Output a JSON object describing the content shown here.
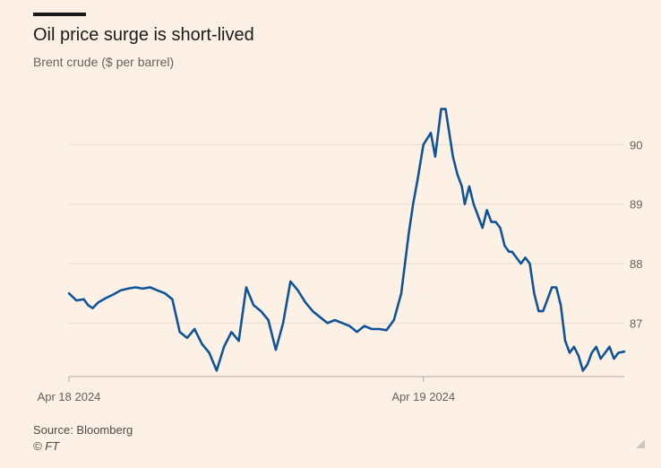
{
  "header": {
    "title": "Oil price surge is short-lived",
    "subtitle": "Brent crude ($ per barrel)"
  },
  "footer": {
    "source": "Source: Bloomberg",
    "credit": "© FT"
  },
  "colors": {
    "background": "#fdf1e6",
    "line": "#0f5499",
    "grid": "#e9dccf",
    "axis": "#b3a89e",
    "text": "#66605c"
  },
  "chart_data": {
    "type": "line",
    "title": "Oil price surge is short-lived",
    "subtitle": "Brent crude ($ per barrel)",
    "xlabel": "",
    "ylabel": "",
    "x_ticks": [
      "Apr 18 2024",
      "Apr 19 2024"
    ],
    "x_tick_hours": [
      0,
      24
    ],
    "y_ticks": [
      87,
      88,
      89,
      90
    ],
    "ylim": [
      86.1,
      90.7
    ],
    "xlim": [
      0,
      37.6
    ],
    "grid": true,
    "y_axis_side": "right",
    "series": [
      {
        "hours": [
          0,
          0.5,
          1,
          1.3,
          1.6,
          2,
          2.5,
          3,
          3.5,
          4,
          4.5,
          5,
          5.5,
          6,
          6.5,
          7,
          7.5,
          8,
          8.5,
          9,
          9.5,
          10,
          10.5,
          11,
          11.5,
          12,
          12.5,
          13,
          13.5,
          14,
          14.5,
          15,
          15.5,
          16,
          16.5,
          17,
          17.5,
          18,
          18.5,
          19,
          19.5,
          20,
          20.5,
          21,
          21.5,
          22,
          22.5,
          23,
          23.3,
          23.6,
          24,
          24.5,
          24.8,
          25,
          25.2,
          25.5,
          26,
          26.3,
          26.6,
          26.8,
          27.1,
          27.4,
          27.7,
          28,
          28.3,
          28.6,
          28.9,
          29.2,
          29.5,
          29.8,
          30,
          30.3,
          30.6,
          30.9,
          31.2,
          31.5,
          31.8,
          32.1,
          32.4,
          32.7,
          33,
          33.3,
          33.6,
          33.9,
          34.2,
          34.5,
          34.8,
          35.1,
          35.4,
          35.7,
          36,
          36.3,
          36.6,
          36.9,
          37.2,
          37.6
        ],
        "values": [
          87.5,
          87.38,
          87.4,
          87.3,
          87.25,
          87.35,
          87.42,
          87.48,
          87.55,
          87.58,
          87.6,
          87.58,
          87.6,
          87.55,
          87.5,
          87.4,
          86.85,
          86.75,
          86.9,
          86.65,
          86.5,
          86.2,
          86.6,
          86.85,
          86.7,
          87.6,
          87.3,
          87.2,
          87.05,
          86.55,
          87.0,
          87.7,
          87.55,
          87.35,
          87.2,
          87.1,
          87.0,
          87.05,
          87.0,
          86.95,
          86.85,
          86.95,
          86.9,
          86.9,
          86.88,
          87.05,
          87.5,
          88.5,
          89.0,
          89.4,
          90.0,
          90.2,
          89.8,
          90.2,
          90.6,
          90.6,
          89.8,
          89.5,
          89.3,
          89.0,
          89.3,
          89.0,
          88.8,
          88.6,
          88.9,
          88.7,
          88.7,
          88.6,
          88.3,
          88.2,
          88.2,
          88.1,
          88.0,
          88.1,
          88.0,
          87.5,
          87.2,
          87.2,
          87.4,
          87.6,
          87.6,
          87.3,
          86.7,
          86.5,
          86.6,
          86.45,
          86.2,
          86.3,
          86.5,
          86.6,
          86.4,
          86.5,
          86.6,
          86.4,
          86.5,
          86.52
        ]
      }
    ]
  }
}
